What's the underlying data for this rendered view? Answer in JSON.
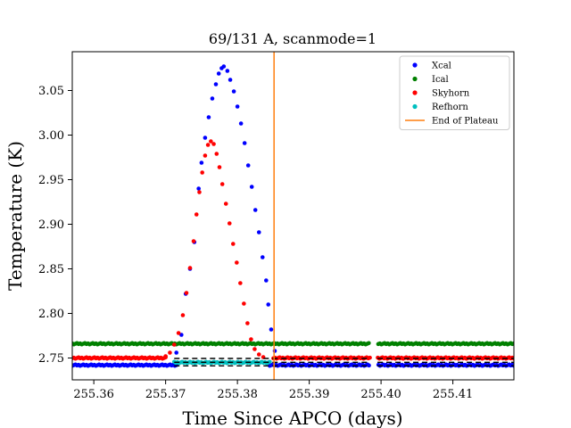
{
  "chart_data": {
    "type": "scatter",
    "title": "69/131 A, scanmode=1",
    "xlabel": "Time Since APCO (days)",
    "ylabel": "Temperature (K)",
    "xlim": [
      255.357,
      255.4185
    ],
    "ylim": [
      2.7255,
      3.0935
    ],
    "xticks": [
      255.36,
      255.37,
      255.38,
      255.39,
      255.4,
      255.41
    ],
    "xtick_labels": [
      "255.36",
      "255.37",
      "255.38",
      "255.39",
      "255.40",
      "255.41"
    ],
    "yticks": [
      2.75,
      2.8,
      2.85,
      2.9,
      2.95,
      3.0,
      3.05
    ],
    "ytick_labels": [
      "2.75",
      "2.80",
      "2.85",
      "2.90",
      "2.95",
      "3.00",
      "3.05"
    ],
    "grid": false,
    "legend_position": "top-right",
    "gap": [
      255.3985,
      255.3995
    ],
    "series": [
      {
        "name": "Xcal",
        "color": "#0000ff",
        "baseline": [
          [
            255.357,
            2.742
          ],
          [
            255.3715,
            2.742
          ],
          [
            255.3845,
            2.742
          ],
          [
            255.4185,
            2.742
          ]
        ],
        "peak": [
          [
            255.3715,
            2.756
          ],
          [
            255.3722,
            2.776
          ],
          [
            255.3728,
            2.822
          ],
          [
            255.3734,
            2.85
          ],
          [
            255.374,
            2.88
          ],
          [
            255.3746,
            2.94
          ],
          [
            255.375,
            2.969
          ],
          [
            255.3755,
            2.997
          ],
          [
            255.376,
            3.02
          ],
          [
            255.3765,
            3.041
          ],
          [
            255.377,
            3.057
          ],
          [
            255.3774,
            3.069
          ],
          [
            255.3778,
            3.075
          ],
          [
            255.3781,
            3.077
          ],
          [
            255.3786,
            3.072
          ],
          [
            255.379,
            3.062
          ],
          [
            255.3795,
            3.049
          ],
          [
            255.38,
            3.032
          ],
          [
            255.3805,
            3.013
          ],
          [
            255.381,
            2.991
          ],
          [
            255.3815,
            2.966
          ],
          [
            255.382,
            2.942
          ],
          [
            255.3825,
            2.916
          ],
          [
            255.383,
            2.891
          ],
          [
            255.3835,
            2.863
          ],
          [
            255.384,
            2.837
          ],
          [
            255.3843,
            2.81
          ],
          [
            255.3847,
            2.782
          ],
          [
            255.3852,
            2.758
          ]
        ]
      },
      {
        "name": "Ical",
        "color": "#008000",
        "baseline": [
          [
            255.357,
            2.766
          ],
          [
            255.4185,
            2.766
          ]
        ],
        "peak": []
      },
      {
        "name": "Skyhorn",
        "color": "#ff0000",
        "baseline": [
          [
            255.357,
            2.75
          ],
          [
            255.37,
            2.75
          ],
          [
            255.385,
            2.75
          ],
          [
            255.4185,
            2.75
          ]
        ],
        "peak": [
          [
            255.37,
            2.752
          ],
          [
            255.3706,
            2.756
          ],
          [
            255.3712,
            2.765
          ],
          [
            255.3718,
            2.778
          ],
          [
            255.3724,
            2.798
          ],
          [
            255.3729,
            2.823
          ],
          [
            255.3734,
            2.851
          ],
          [
            255.3739,
            2.881
          ],
          [
            255.3743,
            2.911
          ],
          [
            255.3747,
            2.936
          ],
          [
            255.3751,
            2.958
          ],
          [
            255.3755,
            2.977
          ],
          [
            255.3759,
            2.989
          ],
          [
            255.3763,
            2.993
          ],
          [
            255.3767,
            2.99
          ],
          [
            255.3771,
            2.979
          ],
          [
            255.3775,
            2.964
          ],
          [
            255.3779,
            2.945
          ],
          [
            255.3784,
            2.923
          ],
          [
            255.3789,
            2.901
          ],
          [
            255.3794,
            2.878
          ],
          [
            255.3799,
            2.857
          ],
          [
            255.3804,
            2.834
          ],
          [
            255.3809,
            2.811
          ],
          [
            255.3814,
            2.789
          ],
          [
            255.3819,
            2.771
          ],
          [
            255.3824,
            2.76
          ],
          [
            255.383,
            2.754
          ],
          [
            255.3836,
            2.751
          ]
        ]
      },
      {
        "name": "Refhorn",
        "color": "#00bfbf",
        "baseline": [
          [
            255.3712,
            2.745
          ],
          [
            255.3845,
            2.745
          ]
        ],
        "peak": []
      },
      {
        "name": "End of Plateau",
        "color": "#ff7f0e",
        "type": "vline",
        "x": 255.3851
      }
    ],
    "hlines": [
      {
        "y": 2.7495,
        "x": [
          255.3712,
          255.4185
        ],
        "color": "#000000",
        "style": "dashed"
      },
      {
        "y": 2.7452,
        "x": [
          255.3712,
          255.4185
        ],
        "color": "#000000",
        "style": "dashed"
      },
      {
        "y": 2.7412,
        "x": [
          255.3712,
          255.4185
        ],
        "color": "#000000",
        "style": "dashed"
      }
    ]
  }
}
